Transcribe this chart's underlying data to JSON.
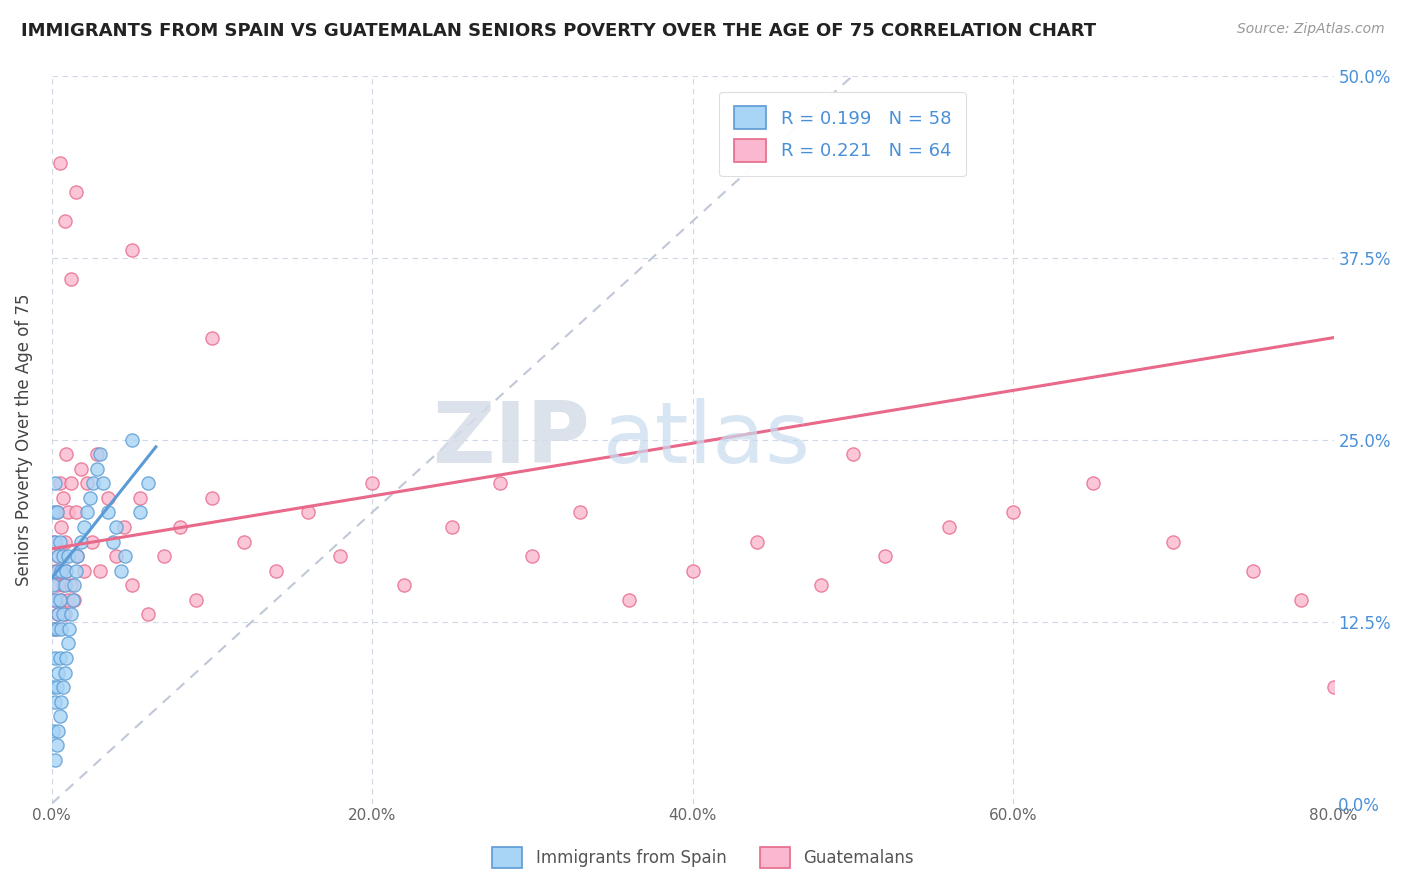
{
  "title": "IMMIGRANTS FROM SPAIN VS GUATEMALAN SENIORS POVERTY OVER THE AGE OF 75 CORRELATION CHART",
  "source": "Source: ZipAtlas.com",
  "ylabel": "Seniors Poverty Over the Age of 75",
  "xlabel_ticks": [
    "0.0%",
    "20.0%",
    "40.0%",
    "60.0%",
    "80.0%"
  ],
  "xlabel_values": [
    0.0,
    0.2,
    0.4,
    0.6,
    0.8
  ],
  "ylabel_ticks": [
    "0.0%",
    "12.5%",
    "25.0%",
    "37.5%",
    "50.0%"
  ],
  "ylabel_values": [
    0.0,
    0.125,
    0.25,
    0.375,
    0.5
  ],
  "xlim": [
    0.0,
    0.8
  ],
  "ylim": [
    0.0,
    0.5
  ],
  "legend_label_1": "Immigrants from Spain",
  "legend_label_2": "Guatemalans",
  "R1": 0.199,
  "N1": 58,
  "R2": 0.221,
  "N2": 64,
  "color_blue": "#A8D4F5",
  "color_pink": "#F9B8CF",
  "color_blue_line": "#5B9BD5",
  "color_pink_line": "#E8698A",
  "color_text_blue": "#4A90D9",
  "color_diag": "#C0C8D8",
  "watermark_zip": "ZIP",
  "watermark_atlas": "atlas",
  "spain_x": [
    0.001,
    0.001,
    0.001,
    0.001,
    0.001,
    0.002,
    0.002,
    0.002,
    0.002,
    0.002,
    0.002,
    0.003,
    0.003,
    0.003,
    0.003,
    0.003,
    0.004,
    0.004,
    0.004,
    0.004,
    0.005,
    0.005,
    0.005,
    0.005,
    0.006,
    0.006,
    0.006,
    0.007,
    0.007,
    0.007,
    0.008,
    0.008,
    0.009,
    0.009,
    0.01,
    0.01,
    0.011,
    0.012,
    0.013,
    0.014,
    0.015,
    0.016,
    0.018,
    0.02,
    0.022,
    0.024,
    0.026,
    0.028,
    0.03,
    0.032,
    0.035,
    0.038,
    0.04,
    0.043,
    0.046,
    0.05,
    0.055,
    0.06
  ],
  "spain_y": [
    0.05,
    0.08,
    0.12,
    0.15,
    0.2,
    0.03,
    0.07,
    0.1,
    0.14,
    0.18,
    0.22,
    0.04,
    0.08,
    0.12,
    0.16,
    0.2,
    0.05,
    0.09,
    0.13,
    0.17,
    0.06,
    0.1,
    0.14,
    0.18,
    0.07,
    0.12,
    0.16,
    0.08,
    0.13,
    0.17,
    0.09,
    0.15,
    0.1,
    0.16,
    0.11,
    0.17,
    0.12,
    0.13,
    0.14,
    0.15,
    0.16,
    0.17,
    0.18,
    0.19,
    0.2,
    0.21,
    0.22,
    0.23,
    0.24,
    0.22,
    0.2,
    0.18,
    0.19,
    0.16,
    0.17,
    0.25,
    0.2,
    0.22
  ],
  "guatemalan_x": [
    0.001,
    0.001,
    0.002,
    0.002,
    0.003,
    0.003,
    0.004,
    0.004,
    0.005,
    0.005,
    0.006,
    0.006,
    0.007,
    0.007,
    0.008,
    0.008,
    0.009,
    0.009,
    0.01,
    0.01,
    0.012,
    0.012,
    0.014,
    0.015,
    0.016,
    0.018,
    0.02,
    0.022,
    0.025,
    0.028,
    0.03,
    0.035,
    0.04,
    0.045,
    0.05,
    0.055,
    0.06,
    0.07,
    0.08,
    0.09,
    0.1,
    0.12,
    0.14,
    0.16,
    0.18,
    0.2,
    0.22,
    0.25,
    0.28,
    0.3,
    0.33,
    0.36,
    0.4,
    0.44,
    0.48,
    0.52,
    0.56,
    0.6,
    0.65,
    0.7,
    0.75,
    0.78,
    0.8,
    0.5
  ],
  "guatemalan_y": [
    0.14,
    0.18,
    0.12,
    0.16,
    0.15,
    0.2,
    0.13,
    0.17,
    0.16,
    0.22,
    0.14,
    0.19,
    0.15,
    0.21,
    0.13,
    0.18,
    0.16,
    0.24,
    0.14,
    0.2,
    0.15,
    0.22,
    0.14,
    0.2,
    0.17,
    0.23,
    0.16,
    0.22,
    0.18,
    0.24,
    0.16,
    0.21,
    0.17,
    0.19,
    0.15,
    0.21,
    0.13,
    0.17,
    0.19,
    0.14,
    0.21,
    0.18,
    0.16,
    0.2,
    0.17,
    0.22,
    0.15,
    0.19,
    0.22,
    0.17,
    0.2,
    0.14,
    0.16,
    0.18,
    0.15,
    0.17,
    0.19,
    0.2,
    0.22,
    0.18,
    0.16,
    0.14,
    0.08,
    0.24
  ],
  "guat_outliers_x": [
    0.005,
    0.008,
    0.012,
    0.015,
    0.05,
    0.1
  ],
  "guat_outliers_y": [
    0.44,
    0.4,
    0.36,
    0.42,
    0.38,
    0.32
  ],
  "spain_blue_line_x": [
    0.0,
    0.065
  ],
  "spain_blue_line_y": [
    0.155,
    0.245
  ],
  "guat_pink_line_x": [
    0.0,
    0.8
  ],
  "guat_pink_line_y": [
    0.175,
    0.32
  ]
}
